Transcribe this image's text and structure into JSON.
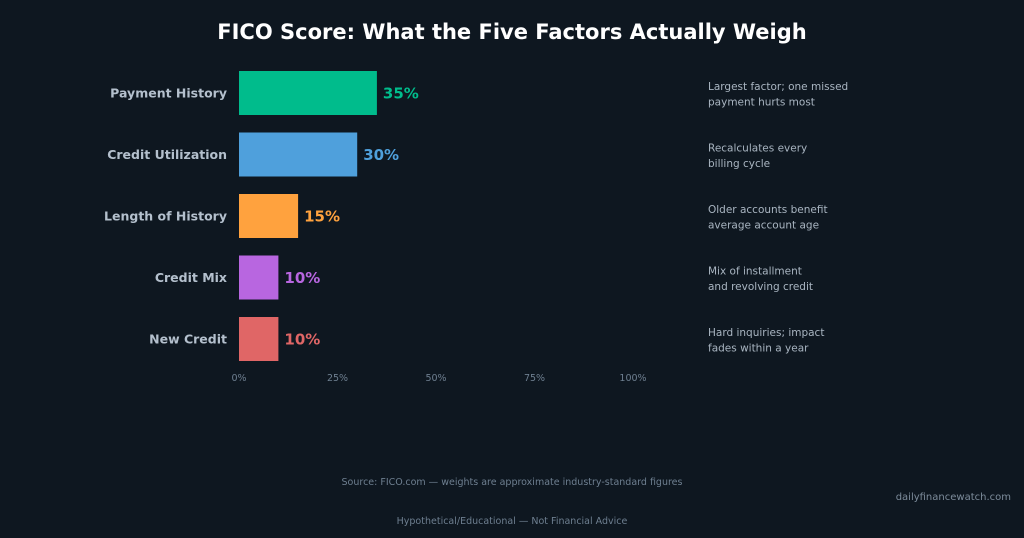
{
  "chart_data": {
    "type": "bar",
    "orientation": "horizontal",
    "title": "FICO Score: What the Five Factors Actually Weigh",
    "categories": [
      "Payment History",
      "Credit Utilization",
      "Length of History",
      "Credit Mix",
      "New Credit"
    ],
    "values": [
      35,
      30,
      15,
      10,
      10
    ],
    "value_labels": [
      "35%",
      "30%",
      "15%",
      "10%",
      "10%"
    ],
    "colors": [
      "#00bc8c",
      "#4fa0dc",
      "#ffa23e",
      "#b866e0",
      "#e06666"
    ],
    "annotations": [
      [
        "Largest factor; one missed",
        "payment hurts most"
      ],
      [
        "Recalculates every",
        "billing cycle"
      ],
      [
        "Older accounts benefit",
        "average account age"
      ],
      [
        "Mix of installment",
        "and revolving credit"
      ],
      [
        "Hard inquiries; impact",
        "fades within a year"
      ]
    ],
    "xlim": [
      0,
      100
    ],
    "xticks": [
      0,
      25,
      50,
      75,
      100
    ],
    "xtick_labels": [
      "0%",
      "25%",
      "50%",
      "75%",
      "100%"
    ],
    "grid": false
  },
  "source": "Source: FICO.com — weights are approximate industry-standard figures",
  "website": "dailyfinancewatch.com",
  "disclaimer": "Hypothetical/Educational — Not Financial Advice"
}
